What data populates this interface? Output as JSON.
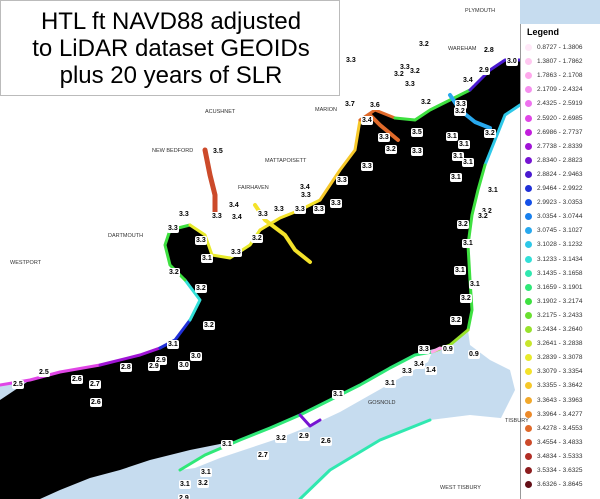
{
  "title": {
    "line1": "HTL ft NAVD88 adjusted",
    "line2": "to LiDAR dataset GEOIDs",
    "line3": "plus 20 years of SLR"
  },
  "legend": {
    "title": "Legend",
    "items": [
      {
        "label": "0.8727 - 1.3806",
        "color": "#ffe8f8"
      },
      {
        "label": "1.3807 - 1.7862",
        "color": "#ffc8f0"
      },
      {
        "label": "1.7863 - 2.1708",
        "color": "#ffa8ec"
      },
      {
        "label": "2.1709 - 2.4324",
        "color": "#f590ee"
      },
      {
        "label": "2.4325 - 2.5919",
        "color": "#ee72ee"
      },
      {
        "label": "2.5920 - 2.6985",
        "color": "#e045e6"
      },
      {
        "label": "2.6986 - 2.7737",
        "color": "#c21edc"
      },
      {
        "label": "2.7738 - 2.8339",
        "color": "#a014d6"
      },
      {
        "label": "2.8340 - 2.8823",
        "color": "#7614d2"
      },
      {
        "label": "2.8824 - 2.9463",
        "color": "#4a1ad0"
      },
      {
        "label": "2.9464 - 2.9922",
        "color": "#2030d8"
      },
      {
        "label": "2.9923 - 3.0353",
        "color": "#1450e8"
      },
      {
        "label": "3.0354 - 3.0744",
        "color": "#1880ee"
      },
      {
        "label": "3.0745 - 3.1027",
        "color": "#28a8ee"
      },
      {
        "label": "3.1028 - 3.1232",
        "color": "#2ec8e8"
      },
      {
        "label": "3.1233 - 3.1434",
        "color": "#32e0d8"
      },
      {
        "label": "3.1435 - 3.1658",
        "color": "#30e8b0"
      },
      {
        "label": "3.1659 - 3.1901",
        "color": "#30e878"
      },
      {
        "label": "3.1902 - 3.2174",
        "color": "#3ee040"
      },
      {
        "label": "3.2175 - 3.2433",
        "color": "#6ae030"
      },
      {
        "label": "3.2434 - 3.2640",
        "color": "#98e22c"
      },
      {
        "label": "3.2641 - 3.2838",
        "color": "#c8e62c"
      },
      {
        "label": "3.2839 - 3.3078",
        "color": "#e8ea2c"
      },
      {
        "label": "3.3079 - 3.3354",
        "color": "#f4e22a"
      },
      {
        "label": "3.3355 - 3.3642",
        "color": "#f6c82a"
      },
      {
        "label": "3.3643 - 3.3963",
        "color": "#f2a82a"
      },
      {
        "label": "3.3964 - 3.4277",
        "color": "#ec8a2a"
      },
      {
        "label": "3.4278 - 3.4553",
        "color": "#e06a2a"
      },
      {
        "label": "3.4554 - 3.4833",
        "color": "#cc4a2a"
      },
      {
        "label": "3.4834 - 3.5333",
        "color": "#b22e26"
      },
      {
        "label": "3.5334 - 3.6325",
        "color": "#8c1c1e"
      },
      {
        "label": "3.6326 - 3.8645",
        "color": "#641018"
      }
    ]
  },
  "places": [
    "PLYMOUTH",
    "WAREHAM",
    "ACUSHNET",
    "MARION",
    "NEW BEDFORD",
    "MATTAPOISETT",
    "FAIRHAVEN",
    "DARTMOUTH",
    "WESTPORT",
    "GOSNOLD",
    "TISBURY",
    "WEST TISBURY"
  ],
  "values": [
    "3.3",
    "3.2",
    "2.8",
    "2.9",
    "3.0",
    "3.4",
    "3.2",
    "3.3",
    "3.7",
    "3.6",
    "3.4",
    "3.5",
    "3.3",
    "3.2",
    "3.5",
    "3.3",
    "3.4",
    "3.3",
    "3.3",
    "3.4",
    "3.4",
    "3.3",
    "3.3",
    "3.3",
    "3.3",
    "3.3",
    "3.3",
    "3.3",
    "3.3",
    "3.3",
    "3.3",
    "3.2",
    "3.1",
    "3.2",
    "3.2",
    "3.2",
    "3.1",
    "3.0",
    "2.9",
    "3.0",
    "2.9",
    "2.8",
    "2.7",
    "2.6",
    "2.5",
    "2.5",
    "2.6",
    "3.3",
    "0.9",
    "0.9",
    "3.4",
    "1.4",
    "3.3",
    "3.1",
    "3.1",
    "3.1",
    "3.1",
    "3.2",
    "3.1",
    "3.2",
    "2.9",
    "2.6",
    "3.2",
    "2.7",
    "3.1",
    "3.1",
    "3.1",
    "3.2",
    "2.9",
    "3.2",
    "3.2",
    "3.1",
    "3.2",
    "3.2",
    "3.1",
    "3.1",
    "3.1",
    "3.1",
    "3.1",
    "3.2",
    "3.3",
    "3.3",
    "3.2",
    "3.2",
    "3.3"
  ]
}
